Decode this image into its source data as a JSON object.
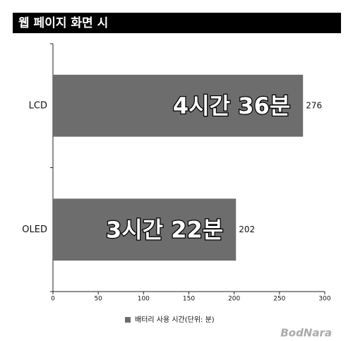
{
  "chart_data": {
    "type": "bar",
    "orientation": "horizontal",
    "title": "웹 페이지 화면 시",
    "categories": [
      "LCD",
      "OLED"
    ],
    "series": [
      {
        "name": "배터리 사용 시간(단위: 분)",
        "color": "#6d6d6d",
        "values": [
          276,
          202
        ]
      }
    ],
    "annotations": [
      "4시간 36분",
      "3시간 22분"
    ],
    "xlim": [
      0,
      300
    ],
    "xticks": [
      0,
      50,
      100,
      150,
      200,
      250,
      300
    ],
    "legend": "bottom",
    "watermark": "BodNara"
  }
}
